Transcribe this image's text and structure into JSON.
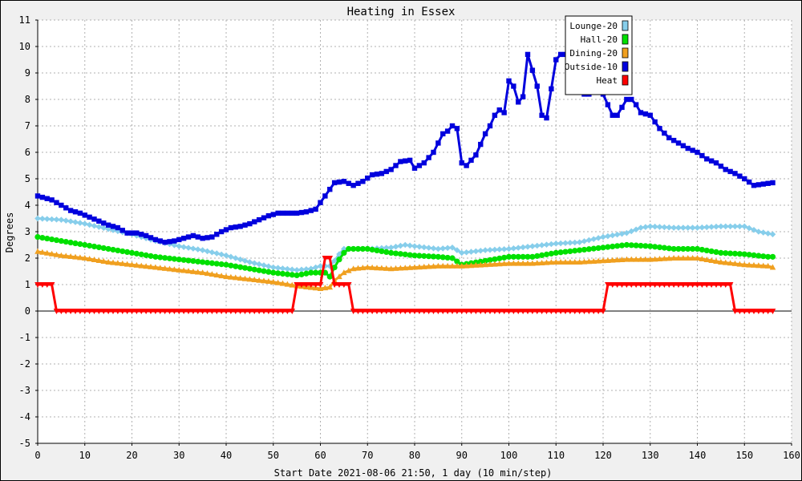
{
  "chart_data": {
    "type": "line",
    "title": "Heating in Essex",
    "xlabel": "Start Date 2021-08-06 21:50, 1 day (10 min/step)",
    "ylabel": "Degrees",
    "xlim": [
      0,
      160
    ],
    "ylim": [
      -5,
      11
    ],
    "x_ticks": [
      0,
      10,
      20,
      30,
      40,
      50,
      60,
      70,
      80,
      90,
      100,
      110,
      120,
      130,
      140,
      150,
      160
    ],
    "y_ticks": [
      -5,
      -4,
      -3,
      -2,
      -1,
      0,
      1,
      2,
      3,
      4,
      5,
      6,
      7,
      8,
      9,
      10,
      11
    ],
    "grid": true,
    "legend_position": "top-right",
    "colors": {
      "background": "#f0f0f0",
      "plot_background": "#ffffff",
      "grid": "#b0b0b0",
      "zero_line": "#000000"
    },
    "series": [
      {
        "name": "Lounge-20",
        "color": "#87ceeb",
        "marker": "diamond",
        "x": [
          0,
          5,
          10,
          15,
          20,
          25,
          30,
          35,
          40,
          45,
          50,
          55,
          58,
          60,
          62,
          63,
          64,
          65,
          70,
          75,
          78,
          80,
          85,
          88,
          90,
          95,
          100,
          105,
          110,
          115,
          120,
          125,
          128,
          130,
          135,
          140,
          145,
          150,
          153,
          156
        ],
        "y": [
          3.5,
          3.45,
          3.3,
          3.1,
          2.9,
          2.65,
          2.45,
          2.3,
          2.1,
          1.85,
          1.65,
          1.55,
          1.6,
          1.7,
          1.7,
          1.9,
          2.15,
          2.35,
          2.35,
          2.4,
          2.5,
          2.45,
          2.35,
          2.4,
          2.2,
          2.3,
          2.35,
          2.45,
          2.55,
          2.6,
          2.8,
          2.95,
          3.15,
          3.2,
          3.15,
          3.15,
          3.2,
          3.2,
          3.0,
          2.9
        ]
      },
      {
        "name": "Hall-20",
        "color": "#00e000",
        "marker": "circle",
        "x": [
          0,
          5,
          10,
          15,
          20,
          25,
          30,
          35,
          40,
          45,
          50,
          55,
          58,
          61,
          62,
          63,
          64,
          65,
          66,
          70,
          75,
          80,
          85,
          88,
          90,
          95,
          100,
          105,
          110,
          115,
          120,
          125,
          130,
          135,
          140,
          145,
          150,
          155,
          156
        ],
        "y": [
          2.8,
          2.65,
          2.5,
          2.35,
          2.2,
          2.05,
          1.95,
          1.85,
          1.75,
          1.6,
          1.45,
          1.35,
          1.45,
          1.45,
          1.3,
          1.65,
          1.95,
          2.2,
          2.35,
          2.35,
          2.2,
          2.1,
          2.05,
          2.0,
          1.75,
          1.9,
          2.05,
          2.05,
          2.2,
          2.3,
          2.4,
          2.5,
          2.45,
          2.35,
          2.35,
          2.2,
          2.15,
          2.05,
          2.05
        ]
      },
      {
        "name": "Dining-20",
        "color": "#f0a020",
        "marker": "triangle-up",
        "x": [
          0,
          5,
          10,
          15,
          20,
          25,
          30,
          35,
          40,
          45,
          50,
          55,
          60,
          62,
          63,
          65,
          67,
          70,
          75,
          80,
          85,
          90,
          95,
          100,
          105,
          110,
          115,
          120,
          125,
          130,
          135,
          140,
          145,
          150,
          155,
          156
        ],
        "y": [
          2.25,
          2.1,
          2.0,
          1.85,
          1.75,
          1.65,
          1.55,
          1.45,
          1.3,
          1.2,
          1.1,
          0.95,
          0.85,
          0.9,
          1.15,
          1.45,
          1.6,
          1.65,
          1.6,
          1.65,
          1.7,
          1.7,
          1.75,
          1.8,
          1.8,
          1.85,
          1.85,
          1.9,
          1.95,
          1.95,
          2.0,
          2.0,
          1.85,
          1.75,
          1.7,
          1.65
        ]
      },
      {
        "name": "Outside-10",
        "color": "#0000dd",
        "marker": "square",
        "x": [
          0,
          3,
          5,
          7,
          9,
          11,
          13,
          15,
          17,
          19,
          21,
          23,
          25,
          27,
          29,
          31,
          33,
          35,
          37,
          39,
          41,
          43,
          45,
          47,
          49,
          51,
          53,
          55,
          57,
          59,
          61,
          63,
          65,
          67,
          69,
          71,
          73,
          75,
          77,
          79,
          80,
          82,
          84,
          86,
          87,
          88,
          89,
          90,
          91,
          93,
          95,
          96,
          97,
          98,
          99,
          100,
          101,
          102,
          103,
          104,
          105,
          106,
          107,
          108,
          109,
          110,
          111,
          112,
          113,
          114,
          115,
          116,
          117,
          118,
          119,
          120,
          121,
          122,
          123,
          124,
          125,
          126,
          127,
          128,
          129,
          130,
          132,
          134,
          136,
          138,
          140,
          142,
          144,
          146,
          148,
          150,
          152,
          154,
          156
        ],
        "y": [
          4.35,
          4.2,
          4.0,
          3.8,
          3.7,
          3.55,
          3.4,
          3.25,
          3.15,
          2.95,
          2.95,
          2.85,
          2.7,
          2.6,
          2.65,
          2.75,
          2.85,
          2.75,
          2.8,
          3.0,
          3.15,
          3.2,
          3.3,
          3.45,
          3.6,
          3.7,
          3.7,
          3.7,
          3.75,
          3.85,
          4.35,
          4.85,
          4.9,
          4.75,
          4.9,
          5.15,
          5.2,
          5.35,
          5.65,
          5.7,
          5.4,
          5.6,
          6.0,
          6.7,
          6.8,
          7.0,
          6.9,
          5.6,
          5.5,
          5.9,
          6.7,
          7.0,
          7.4,
          7.6,
          7.5,
          8.7,
          8.5,
          7.9,
          8.1,
          9.7,
          9.1,
          8.5,
          7.4,
          7.3,
          8.4,
          9.5,
          9.7,
          9.7,
          9.7,
          9.6,
          8.9,
          8.2,
          8.2,
          8.4,
          8.3,
          8.2,
          7.8,
          7.4,
          7.4,
          7.7,
          8.0,
          8.0,
          7.8,
          7.5,
          7.45,
          7.4,
          6.9,
          6.55,
          6.35,
          6.15,
          6.0,
          5.75,
          5.6,
          5.35,
          5.2,
          5.0,
          4.75,
          4.8,
          4.85
        ]
      },
      {
        "name": "Heat",
        "color": "#ff0000",
        "marker": "triangle-down",
        "x": [
          0,
          3,
          4,
          54,
          55,
          60,
          61,
          62,
          63,
          64,
          66,
          67,
          120,
          121,
          147,
          148,
          156
        ],
        "y": [
          1,
          1,
          0,
          0,
          1,
          1,
          2,
          2,
          1,
          1,
          1,
          0,
          0,
          1,
          1,
          0,
          0
        ]
      }
    ]
  }
}
